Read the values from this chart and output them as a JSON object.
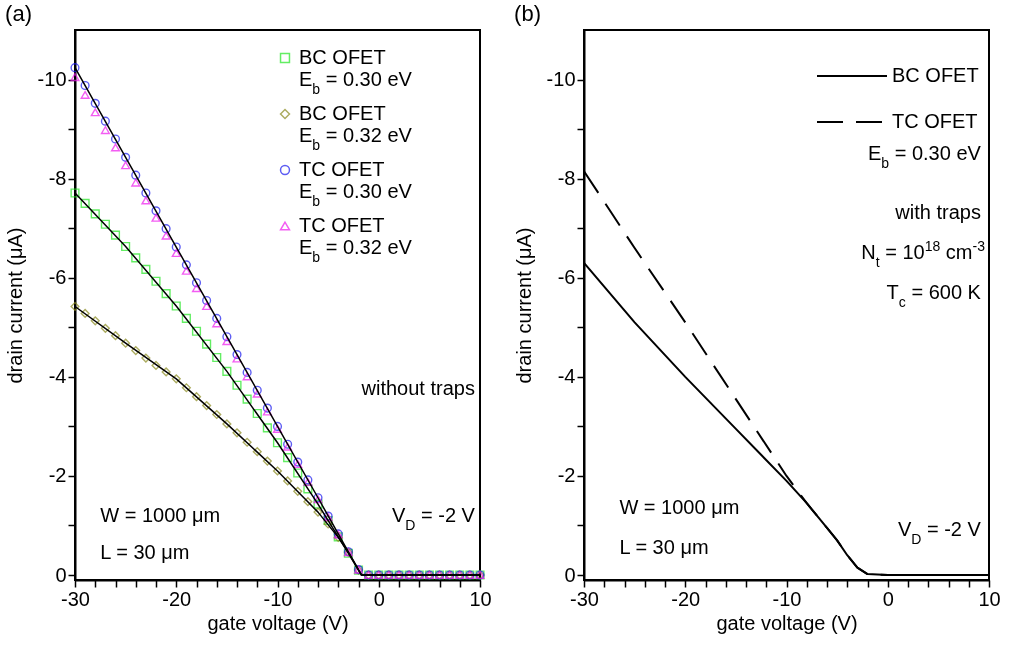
{
  "chart_data": [
    {
      "type": "scatter",
      "title": "(a)",
      "xlabel": "gate voltage (V)",
      "ylabel": "drain current (μA)",
      "xlim": [
        -30,
        10
      ],
      "ylim": [
        0.1,
        -11
      ],
      "xticks": [
        -30,
        {
          "value": -28,
          "label": null
        },
        {
          "value": -26,
          "label": null
        },
        {
          "value": -24,
          "label": null
        },
        {
          "value": -22,
          "label": null
        },
        -20,
        {
          "value": -18,
          "label": null
        },
        {
          "value": -16,
          "label": null
        },
        {
          "value": -14,
          "label": null
        },
        {
          "value": -12,
          "label": null
        },
        -10,
        {
          "value": -8,
          "label": null
        },
        {
          "value": -6,
          "label": null
        },
        {
          "value": -4,
          "label": null
        },
        {
          "value": -2,
          "label": null
        },
        0,
        {
          "value": 2,
          "label": null
        },
        {
          "value": 4,
          "label": null
        },
        {
          "value": 6,
          "label": null
        },
        {
          "value": 8,
          "label": null
        },
        10
      ],
      "yticks": [
        0,
        {
          "value": -1,
          "label": null
        },
        -2,
        {
          "value": -3,
          "label": null
        },
        -4,
        {
          "value": -5,
          "label": null
        },
        -6,
        {
          "value": -7,
          "label": null
        },
        -8,
        {
          "value": -9,
          "label": null
        },
        -10
      ],
      "grid": false,
      "legend": "top right",
      "annotations": [
        "without traps",
        "W = 1000 μm",
        "L = 30 μm",
        "V$_{D}$ = -2 V"
      ],
      "x": [
        -30,
        -29,
        -28,
        -27,
        -26,
        -25,
        -24,
        -23,
        -22,
        -21,
        -20,
        -19,
        -18,
        -17,
        -16,
        -15,
        -14,
        -13,
        -12,
        -11,
        -10,
        -9,
        -8,
        -7,
        -6,
        -5,
        -4,
        -3,
        -2,
        -1,
        0,
        1,
        2,
        3,
        4,
        5,
        6,
        7,
        8,
        9,
        10
      ],
      "series": [
        {
          "name": "BC OFET\nE$_{b}$ = 0.30 eV",
          "color": "#22e622",
          "marker": "square",
          "values": [
            -7.71,
            -7.5,
            -7.29,
            -7.08,
            -6.86,
            -6.63,
            -6.4,
            -6.17,
            -5.93,
            -5.68,
            -5.43,
            -5.18,
            -4.92,
            -4.66,
            -4.39,
            -4.11,
            -3.83,
            -3.55,
            -3.26,
            -2.97,
            -2.67,
            -2.37,
            -2.06,
            -1.74,
            -1.43,
            -1.1,
            -0.77,
            -0.44,
            -0.1,
            0,
            0,
            0,
            0,
            0,
            0,
            0,
            0,
            0,
            0,
            0,
            0
          ]
        },
        {
          "name": "BC OFET\nE$_{b}$ = 0.32 eV",
          "color": "#8a8a1e",
          "marker": "diamond",
          "values": [
            -5.42,
            -5.28,
            -5.13,
            -4.98,
            -4.83,
            -4.68,
            -4.53,
            -4.38,
            -4.23,
            -4.1,
            -3.96,
            -3.78,
            -3.6,
            -3.42,
            -3.24,
            -3.05,
            -2.87,
            -2.68,
            -2.49,
            -2.3,
            -2.1,
            -1.9,
            -1.69,
            -1.48,
            -1.27,
            -1.03,
            -0.76,
            -0.46,
            -0.1,
            0,
            0,
            0,
            0,
            0,
            0,
            0,
            0,
            0,
            0,
            0,
            0
          ]
        },
        {
          "name": "TC OFET\nE$_{b}$ = 0.30 eV",
          "color": "#1a1aee",
          "marker": "circle",
          "values": [
            -10.24,
            -9.88,
            -9.52,
            -9.16,
            -8.8,
            -8.43,
            -8.07,
            -7.71,
            -7.35,
            -6.99,
            -6.62,
            -6.26,
            -5.9,
            -5.54,
            -5.18,
            -4.81,
            -4.45,
            -4.09,
            -3.73,
            -3.37,
            -3.0,
            -2.64,
            -2.28,
            -1.92,
            -1.56,
            -1.19,
            -0.83,
            -0.47,
            -0.11,
            0,
            0,
            0,
            0,
            0,
            0,
            0,
            0,
            0,
            0,
            0,
            0
          ]
        },
        {
          "name": "TC OFET\nE$_{b}$ = 0.32 eV",
          "color": "#ee1aee",
          "marker": "triangle",
          "values": [
            -10.05,
            -9.69,
            -9.34,
            -8.98,
            -8.63,
            -8.27,
            -7.92,
            -7.56,
            -7.21,
            -6.85,
            -6.5,
            -6.14,
            -5.79,
            -5.43,
            -5.08,
            -4.72,
            -4.37,
            -4.01,
            -3.66,
            -3.3,
            -2.95,
            -2.59,
            -2.24,
            -1.88,
            -1.53,
            -1.17,
            -0.82,
            -0.46,
            -0.11,
            0,
            0,
            0,
            0,
            0,
            0,
            0,
            0,
            0,
            0,
            0,
            0
          ]
        },
        {
          "type": "line",
          "color": "#000000",
          "line_style": "solid",
          "x": [
            -30,
            -25,
            -20,
            -15,
            -10,
            -6,
            -4,
            -3,
            -2,
            -1.7,
            0,
            10
          ],
          "values": [
            -7.71,
            -6.63,
            -5.43,
            -4.11,
            -2.67,
            -1.43,
            -0.77,
            -0.44,
            -0.1,
            0,
            0,
            0
          ]
        },
        {
          "type": "line",
          "color": "#000000",
          "line_style": "solid",
          "x": [
            -30,
            -25,
            -20,
            -15,
            -10,
            -6,
            -4,
            -3,
            -2,
            -1.7,
            0,
            10
          ],
          "values": [
            -5.42,
            -4.68,
            -3.96,
            -3.05,
            -2.1,
            -1.27,
            -0.76,
            -0.46,
            -0.1,
            0,
            0,
            0
          ]
        },
        {
          "type": "line",
          "color": "#000000",
          "line_style": "solid",
          "x": [
            -30,
            -25,
            -20,
            -15,
            -10,
            -6,
            -4,
            -3,
            -2,
            -1.7,
            0,
            10
          ],
          "values": [
            -10.24,
            -8.43,
            -6.62,
            -4.81,
            -3.0,
            -1.56,
            -0.83,
            -0.47,
            -0.11,
            0,
            0,
            0
          ]
        }
      ]
    },
    {
      "type": "line",
      "title": "(b)",
      "xlabel": "gate voltage (V)",
      "ylabel": "drain current (μA)",
      "xlim": [
        -30,
        10
      ],
      "ylim": [
        0.1,
        -11
      ],
      "xticks": [
        -30,
        {
          "value": -28,
          "label": null
        },
        {
          "value": -26,
          "label": null
        },
        {
          "value": -24,
          "label": null
        },
        {
          "value": -22,
          "label": null
        },
        -20,
        {
          "value": -18,
          "label": null
        },
        {
          "value": -16,
          "label": null
        },
        {
          "value": -14,
          "label": null
        },
        {
          "value": -12,
          "label": null
        },
        -10,
        {
          "value": -8,
          "label": null
        },
        {
          "value": -6,
          "label": null
        },
        {
          "value": -4,
          "label": null
        },
        {
          "value": -2,
          "label": null
        },
        0,
        {
          "value": 2,
          "label": null
        },
        {
          "value": 4,
          "label": null
        },
        {
          "value": 6,
          "label": null
        },
        {
          "value": 8,
          "label": null
        },
        10
      ],
      "yticks": [
        0,
        {
          "value": -1,
          "label": null
        },
        -2,
        {
          "value": -3,
          "label": null
        },
        -4,
        {
          "value": -5,
          "label": null
        },
        -6,
        {
          "value": -7,
          "label": null
        },
        -8,
        {
          "value": -9,
          "label": null
        },
        -10
      ],
      "grid": false,
      "legend": "top right",
      "annotations": [
        "E$_{b}$ = 0.30 eV",
        "with traps",
        "N$_{t}$ = 10$^{18}$ cm$^{-3}$",
        "T$_{c}$ = 600 K",
        "W = 1000 μm",
        "L = 30 μm",
        "V$_{D}$ = -2 V"
      ],
      "x": [
        -30,
        -25,
        -20,
        -15,
        -10,
        -8,
        -6,
        -5,
        -4,
        -3,
        -2,
        0,
        10
      ],
      "series": [
        {
          "name": "BC OFET",
          "color": "#000000",
          "line_style": "solid",
          "values": [
            -6.3,
            -5.1,
            -4.0,
            -2.95,
            -1.9,
            -1.45,
            -0.95,
            -0.7,
            -0.4,
            -0.15,
            -0.02,
            0,
            0
          ]
        },
        {
          "name": "TC OFET",
          "color": "#000000",
          "line_style": "dashed",
          "values": [
            -8.15,
            -6.6,
            -5.1,
            -3.55,
            -2.0,
            -1.45,
            -0.95,
            -0.7,
            -0.4,
            -0.15,
            -0.02,
            0,
            0
          ]
        }
      ]
    }
  ]
}
